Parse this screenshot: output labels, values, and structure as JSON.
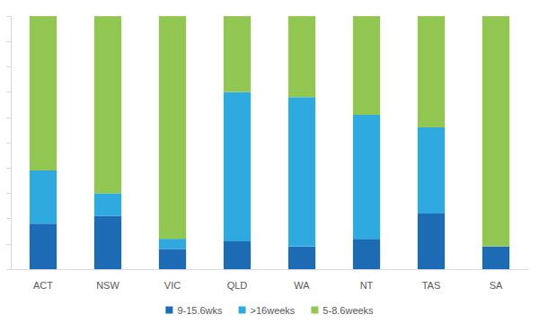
{
  "chart_data": {
    "type": "bar",
    "categories": [
      "ACT",
      "NSW",
      "VIC",
      "QLD",
      "WA",
      "NT",
      "TAS",
      "SA"
    ],
    "series": [
      {
        "name": "9-15.6wks",
        "color": "#1c6bb4",
        "values": [
          18,
          21,
          8,
          11,
          9,
          12,
          22,
          9
        ]
      },
      {
        "name": ">16weeks",
        "color": "#2eaae1",
        "values": [
          21,
          9,
          4,
          59,
          59,
          49,
          34,
          0
        ]
      },
      {
        "name": "5-8.6weeks",
        "color": "#92c852",
        "values": [
          61,
          70,
          88,
          30,
          32,
          39,
          44,
          91
        ]
      }
    ],
    "ylim": [
      0,
      100
    ],
    "yticks": [
      0,
      10,
      20,
      30,
      40,
      50,
      60,
      70,
      80,
      90,
      100
    ],
    "stacked": true,
    "grid": false,
    "legend": "bottom",
    "tick_labels": "x"
  }
}
